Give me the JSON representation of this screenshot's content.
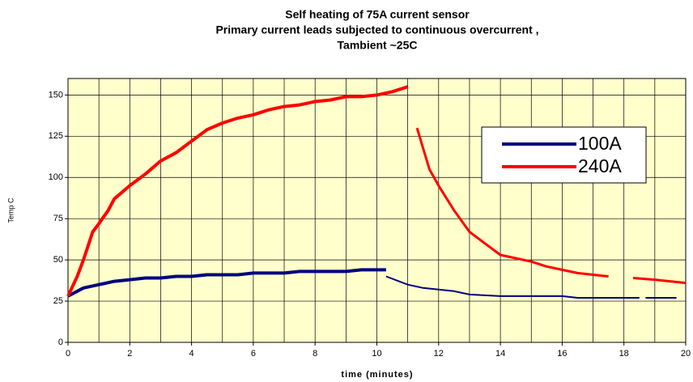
{
  "chart_data": {
    "type": "line",
    "title": [
      "Self heating of 75A current sensor",
      "Primary current  leads subjected to continuous overcurrent ,",
      "Tambient ~25C"
    ],
    "xlabel": "time (minutes)",
    "ylabel": "Temp C",
    "xlim": [
      0,
      20
    ],
    "xticks": [
      0,
      2,
      4,
      6,
      8,
      10,
      12,
      14,
      16,
      18,
      20
    ],
    "xminorticks": [
      1,
      3,
      5,
      7,
      9,
      11,
      13,
      15,
      17,
      19
    ],
    "ylim": [
      0,
      160
    ],
    "yticks": [
      0,
      25,
      50,
      75,
      100,
      125,
      150
    ],
    "grid": true,
    "series": [
      {
        "name": "100A",
        "color": "#000080",
        "x": [
          0,
          0.5,
          1,
          1.5,
          2,
          2.5,
          3,
          3.5,
          4,
          4.5,
          5,
          5.5,
          6,
          7,
          7.5,
          8,
          9,
          9.5,
          10.3,
          null,
          10.3,
          11,
          11.5,
          12,
          12.5,
          13,
          14,
          15,
          16,
          16.5,
          17,
          18,
          18.5,
          null,
          18.7,
          19.7
        ],
        "values": [
          28,
          33,
          35,
          37,
          38,
          39,
          39,
          40,
          40,
          41,
          41,
          41,
          42,
          42,
          43,
          43,
          43,
          44,
          44,
          null,
          40,
          35,
          33,
          32,
          31,
          29,
          28,
          28,
          28,
          27,
          27,
          27,
          27,
          null,
          27,
          27
        ]
      },
      {
        "name": "240A",
        "color": "#ff0000",
        "x": [
          0,
          0.3,
          0.5,
          0.8,
          1,
          1.3,
          1.5,
          2,
          2.5,
          3,
          3.5,
          4,
          4.5,
          5,
          5.5,
          6,
          6.5,
          7,
          7.5,
          8,
          8.5,
          9,
          9.5,
          10,
          10.5,
          11,
          null,
          11.3,
          11.7,
          12,
          12.5,
          13,
          13.5,
          14,
          14.5,
          15,
          15.5,
          16,
          16.5,
          17,
          17.5,
          null,
          18.3,
          19,
          20
        ],
        "values": [
          28,
          40,
          50,
          67,
          72,
          80,
          87,
          95,
          102,
          110,
          115,
          122,
          129,
          133,
          136,
          138,
          141,
          143,
          144,
          146,
          147,
          149,
          149,
          150,
          152,
          155,
          null,
          130,
          105,
          95,
          80,
          67,
          60,
          53,
          51,
          49,
          46,
          44,
          42,
          41,
          40,
          null,
          39,
          38,
          36
        ]
      }
    ]
  }
}
